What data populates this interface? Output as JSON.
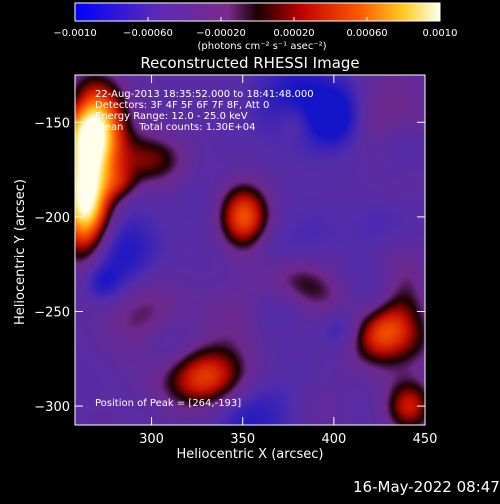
{
  "chart_data": {
    "type": "heatmap",
    "title": "Reconstructed RHESSI Image",
    "xlabel": "Heliocentric X (arcsec)",
    "ylabel": "Heliocentric Y (arcsec)",
    "xlim": [
      258,
      450
    ],
    "ylim": [
      -310,
      -125
    ],
    "x_ticks": [
      {
        "value": 300,
        "label": "300"
      },
      {
        "value": 350,
        "label": "350"
      },
      {
        "value": 400,
        "label": "400"
      },
      {
        "value": 450,
        "label": "450"
      }
    ],
    "y_ticks": [
      {
        "value": -150,
        "label": "−150"
      },
      {
        "value": -200,
        "label": "−200"
      },
      {
        "value": -250,
        "label": "−250"
      },
      {
        "value": -300,
        "label": "−300"
      }
    ],
    "colorbar": {
      "range": [
        -0.001,
        0.001
      ],
      "ticks": [
        {
          "value": -0.001,
          "label": "−0.0010"
        },
        {
          "value": -0.0006,
          "label": "−0.00060"
        },
        {
          "value": -0.0002,
          "label": "−0.00020"
        },
        {
          "value": 0.0002,
          "label": "0.00020"
        },
        {
          "value": 0.0006,
          "label": "0.00060"
        },
        {
          "value": 0.001,
          "label": "0.0010"
        }
      ],
      "unit": "(photons cm⁻² s⁻¹ asec⁻²)",
      "colormap": "blue-purple-red-orange-yellow-white"
    },
    "info_lines": [
      "22-Aug-2013 18:35:52.000 to 18:41:48.000",
      "Detectors: 3F 4F 5F 6F 7F 8F, Att 0",
      "Energy Range: 12.0 - 25.0 keV",
      "Clean     Total counts: 1.30E+04"
    ],
    "peak_text": "Position of Peak = [264,-193]",
    "bright_regions": [
      {
        "x": 264,
        "y": -193,
        "intensity": 1.0,
        "sx": 10,
        "sy": 22
      },
      {
        "x": 268,
        "y": -150,
        "intensity": 0.85,
        "sx": 12,
        "sy": 16
      },
      {
        "x": 350,
        "y": -200,
        "intensity": 0.85,
        "sx": 11,
        "sy": 13
      },
      {
        "x": 425,
        "y": -260,
        "intensity": 0.85,
        "sx": 16,
        "sy": 14
      },
      {
        "x": 330,
        "y": -285,
        "intensity": 0.6,
        "sx": 18,
        "sy": 12
      },
      {
        "x": 440,
        "y": -300,
        "intensity": 0.55,
        "sx": 10,
        "sy": 10
      },
      {
        "x": 300,
        "y": -170,
        "intensity": 0.35,
        "sx": 14,
        "sy": 10
      },
      {
        "x": 385,
        "y": -235,
        "intensity": 0.35,
        "sx": 18,
        "sy": 10
      }
    ]
  },
  "timestamp": "16-May-2022 08:47"
}
